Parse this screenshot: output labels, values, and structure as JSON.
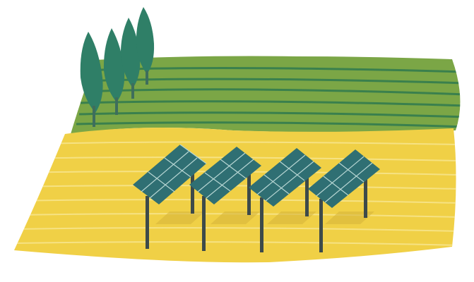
{
  "scene": {
    "background": "#ffffff",
    "colors": {
      "field_yellow": "#f0d046",
      "field_yellow_stripe": "#f7e48a",
      "field_green": "#7ba646",
      "field_green_dark": "#2f7a4f",
      "tree_green": "#2f7f67",
      "tree_trunk": "#3e6e5c",
      "panel_fill": "#2f6f73",
      "panel_grid": "#b7d6d3",
      "post": "#3d4a4a",
      "shadow": "#d7b53b"
    },
    "objects": {
      "trees": [
        "cypress-tree",
        "cypress-tree",
        "cypress-tree",
        "cypress-tree"
      ],
      "solar_panels": [
        "solar-panel",
        "solar-panel",
        "solar-panel",
        "solar-panel"
      ]
    }
  }
}
